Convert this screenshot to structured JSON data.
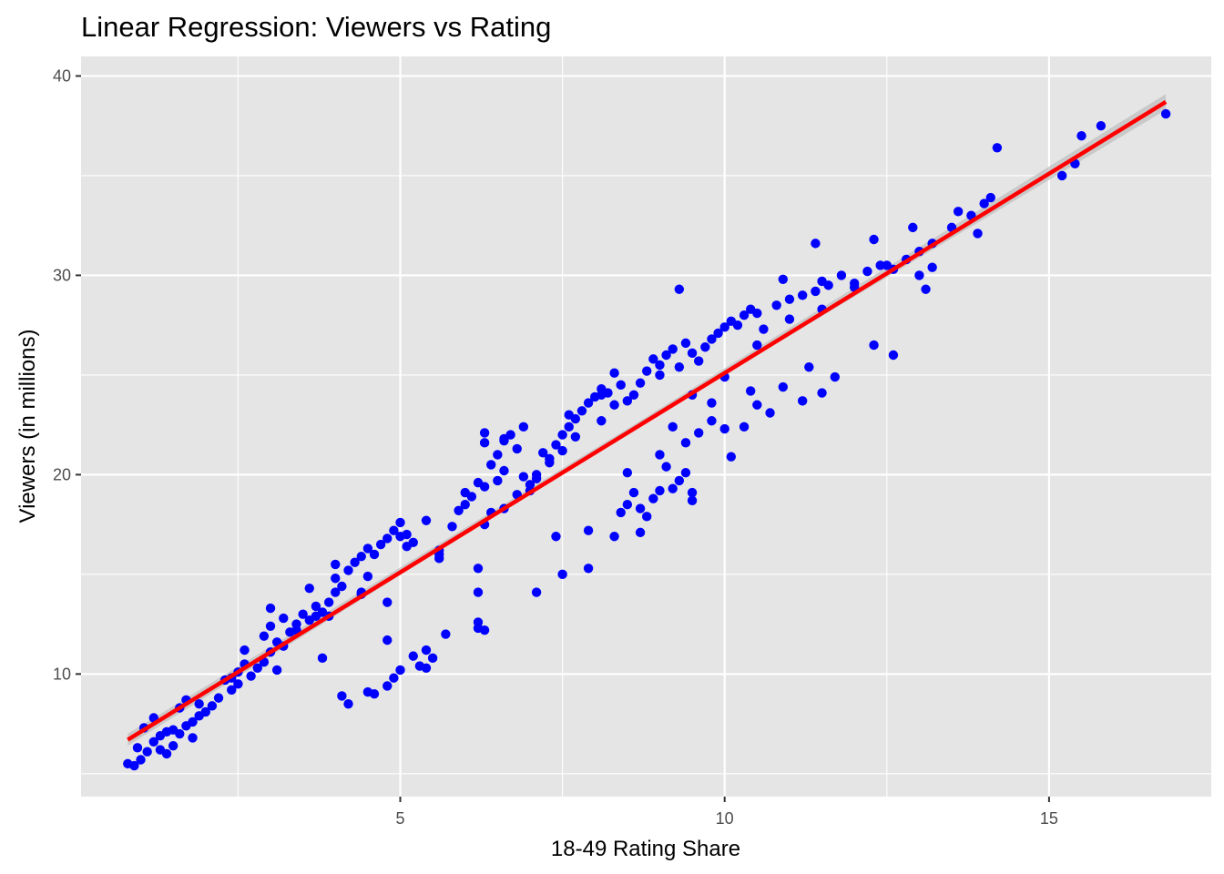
{
  "chart_data": {
    "type": "scatter",
    "title": "Linear Regression: Viewers vs Rating",
    "xlabel": "18-49 Rating Share",
    "ylabel": "Viewers (in millions)",
    "xlim": [
      0.08,
      17.5
    ],
    "ylim": [
      3.85,
      40.98
    ],
    "x_ticks": [
      5,
      10,
      15
    ],
    "y_ticks": [
      10,
      20,
      30,
      40
    ],
    "x_tick_labels": [
      "5",
      "10",
      "15"
    ],
    "y_tick_labels": [
      "10",
      "20",
      "30",
      "40"
    ],
    "grid": true,
    "legend": "none",
    "colors": {
      "panel": "#e5e5e5",
      "grid": "#ffffff",
      "points": "#0000ff",
      "fit_line": "#ff0000",
      "confidence_band": "#bfbfbf"
    },
    "fit_line": {
      "x": [
        0.8,
        16.8
      ],
      "y": [
        6.7,
        38.7
      ]
    },
    "confidence_band": {
      "x": [
        0.8,
        8.5,
        16.8
      ],
      "lower": [
        6.4,
        22.1,
        38.3
      ],
      "upper": [
        7.0,
        22.3,
        39.1
      ]
    },
    "points": [
      [
        0.8,
        5.5
      ],
      [
        0.9,
        5.4
      ],
      [
        1.0,
        5.7
      ],
      [
        0.95,
        6.3
      ],
      [
        1.1,
        6.1
      ],
      [
        1.2,
        6.6
      ],
      [
        1.3,
        6.2
      ],
      [
        1.4,
        6.0
      ],
      [
        1.3,
        6.9
      ],
      [
        1.5,
        7.2
      ],
      [
        1.6,
        7.0
      ],
      [
        1.7,
        7.4
      ],
      [
        1.8,
        7.6
      ],
      [
        1.6,
        8.3
      ],
      [
        1.7,
        8.7
      ],
      [
        1.9,
        8.5
      ],
      [
        2.0,
        8.1
      ],
      [
        1.8,
        6.8
      ],
      [
        1.2,
        7.8
      ],
      [
        1.05,
        7.3
      ],
      [
        1.4,
        7.1
      ],
      [
        1.5,
        6.4
      ],
      [
        1.9,
        7.9
      ],
      [
        2.1,
        8.4
      ],
      [
        2.2,
        8.8
      ],
      [
        2.4,
        9.2
      ],
      [
        2.3,
        9.7
      ],
      [
        2.5,
        10.1
      ],
      [
        2.6,
        10.5
      ],
      [
        2.5,
        9.5
      ],
      [
        2.7,
        9.9
      ],
      [
        2.8,
        10.3
      ],
      [
        2.9,
        10.6
      ],
      [
        3.0,
        11.1
      ],
      [
        3.1,
        11.6
      ],
      [
        3.2,
        11.4
      ],
      [
        2.9,
        11.9
      ],
      [
        3.3,
        12.1
      ],
      [
        3.4,
        12.5
      ],
      [
        3.5,
        13.0
      ],
      [
        3.6,
        12.7
      ],
      [
        3.7,
        13.4
      ],
      [
        3.8,
        13.1
      ],
      [
        3.9,
        13.6
      ],
      [
        3.0,
        12.4
      ],
      [
        3.0,
        13.3
      ],
      [
        3.2,
        12.8
      ],
      [
        3.1,
        10.2
      ],
      [
        2.6,
        11.2
      ],
      [
        3.6,
        14.3
      ],
      [
        4.0,
        14.1
      ],
      [
        4.1,
        14.4
      ],
      [
        4.2,
        15.2
      ],
      [
        4.3,
        15.6
      ],
      [
        4.4,
        15.9
      ],
      [
        4.5,
        16.3
      ],
      [
        4.6,
        16.0
      ],
      [
        4.7,
        16.5
      ],
      [
        4.8,
        16.8
      ],
      [
        4.9,
        17.2
      ],
      [
        5.0,
        17.6
      ],
      [
        5.1,
        17.0
      ],
      [
        5.2,
        16.6
      ],
      [
        4.0,
        15.5
      ],
      [
        4.0,
        14.8
      ],
      [
        4.4,
        14.0
      ],
      [
        4.8,
        13.6
      ],
      [
        3.8,
        10.8
      ],
      [
        4.1,
        8.9
      ],
      [
        4.2,
        8.5
      ],
      [
        4.5,
        9.1
      ],
      [
        4.6,
        9.0
      ],
      [
        4.8,
        9.4
      ],
      [
        4.9,
        9.8
      ],
      [
        5.0,
        10.2
      ],
      [
        5.2,
        10.9
      ],
      [
        5.4,
        11.2
      ],
      [
        5.3,
        10.4
      ],
      [
        5.4,
        10.3
      ],
      [
        5.5,
        10.8
      ],
      [
        4.8,
        11.7
      ],
      [
        5.7,
        12.0
      ],
      [
        5.6,
        15.8
      ],
      [
        5.6,
        16.2
      ],
      [
        5.8,
        17.4
      ],
      [
        5.9,
        18.2
      ],
      [
        6.0,
        18.5
      ],
      [
        6.1,
        18.9
      ],
      [
        6.3,
        19.4
      ],
      [
        6.2,
        19.6
      ],
      [
        6.4,
        20.5
      ],
      [
        6.5,
        21.0
      ],
      [
        6.6,
        21.7
      ],
      [
        6.7,
        22.0
      ],
      [
        6.8,
        21.3
      ],
      [
        6.9,
        22.4
      ],
      [
        6.3,
        22.1
      ],
      [
        6.3,
        21.6
      ],
      [
        6.0,
        19.1
      ],
      [
        6.4,
        18.1
      ],
      [
        6.6,
        18.3
      ],
      [
        6.8,
        19.0
      ],
      [
        7.0,
        19.5
      ],
      [
        7.1,
        20.0
      ],
      [
        7.3,
        20.8
      ],
      [
        7.2,
        21.1
      ],
      [
        7.4,
        21.5
      ],
      [
        7.5,
        22.0
      ],
      [
        7.6,
        22.4
      ],
      [
        7.7,
        22.8
      ],
      [
        7.8,
        23.2
      ],
      [
        7.9,
        23.6
      ],
      [
        8.0,
        23.9
      ],
      [
        8.1,
        24.3
      ],
      [
        8.2,
        24.1
      ],
      [
        8.3,
        25.1
      ],
      [
        8.4,
        24.5
      ],
      [
        8.5,
        23.7
      ],
      [
        8.6,
        24.0
      ],
      [
        8.7,
        24.6
      ],
      [
        8.8,
        25.2
      ],
      [
        8.9,
        25.8
      ],
      [
        9.0,
        25.5
      ],
      [
        9.1,
        26.0
      ],
      [
        9.2,
        26.3
      ],
      [
        9.3,
        25.4
      ],
      [
        9.4,
        26.6
      ],
      [
        9.5,
        26.1
      ],
      [
        9.6,
        25.7
      ],
      [
        9.7,
        26.4
      ],
      [
        9.8,
        26.8
      ],
      [
        9.9,
        27.1
      ],
      [
        10.0,
        27.4
      ],
      [
        10.1,
        27.7
      ],
      [
        10.2,
        27.5
      ],
      [
        10.3,
        28.0
      ],
      [
        10.4,
        28.3
      ],
      [
        10.5,
        28.1
      ],
      [
        10.6,
        27.3
      ],
      [
        10.8,
        28.5
      ],
      [
        11.0,
        28.8
      ],
      [
        11.2,
        29.0
      ],
      [
        11.4,
        29.2
      ],
      [
        11.5,
        29.7
      ],
      [
        11.6,
        29.5
      ],
      [
        11.8,
        30.0
      ],
      [
        12.0,
        29.4
      ],
      [
        12.2,
        30.2
      ],
      [
        12.4,
        30.5
      ],
      [
        12.6,
        30.3
      ],
      [
        12.8,
        30.8
      ],
      [
        13.0,
        31.2
      ],
      [
        13.2,
        31.6
      ],
      [
        13.5,
        32.4
      ],
      [
        13.6,
        33.2
      ],
      [
        13.8,
        33.0
      ],
      [
        14.0,
        33.6
      ],
      [
        14.2,
        36.4
      ],
      [
        13.9,
        32.1
      ],
      [
        13.1,
        29.3
      ],
      [
        13.0,
        30.0
      ],
      [
        12.9,
        32.4
      ],
      [
        12.3,
        31.8
      ],
      [
        12.3,
        26.5
      ],
      [
        12.6,
        26.0
      ],
      [
        11.4,
        31.6
      ],
      [
        11.5,
        24.1
      ],
      [
        11.7,
        24.9
      ],
      [
        11.3,
        25.4
      ],
      [
        11.2,
        23.7
      ],
      [
        10.9,
        29.8
      ],
      [
        9.3,
        29.3
      ],
      [
        10.4,
        24.2
      ],
      [
        10.3,
        22.4
      ],
      [
        10.1,
        20.9
      ],
      [
        10.0,
        22.3
      ],
      [
        9.8,
        23.6
      ],
      [
        9.6,
        22.1
      ],
      [
        9.4,
        20.1
      ],
      [
        9.3,
        19.7
      ],
      [
        9.1,
        20.4
      ],
      [
        9.0,
        19.2
      ],
      [
        8.9,
        18.8
      ],
      [
        8.8,
        17.9
      ],
      [
        8.7,
        18.3
      ],
      [
        8.6,
        19.1
      ],
      [
        8.5,
        20.1
      ],
      [
        8.4,
        18.1
      ],
      [
        8.7,
        17.1
      ],
      [
        9.2,
        19.3
      ],
      [
        9.5,
        19.1
      ],
      [
        9.0,
        21.0
      ],
      [
        9.2,
        22.4
      ],
      [
        9.4,
        21.6
      ],
      [
        9.8,
        22.7
      ],
      [
        10.5,
        23.5
      ],
      [
        10.7,
        23.1
      ],
      [
        10.9,
        24.4
      ],
      [
        10.0,
        24.9
      ],
      [
        9.5,
        24.0
      ],
      [
        8.3,
        23.5
      ],
      [
        8.1,
        22.7
      ],
      [
        7.7,
        21.9
      ],
      [
        7.5,
        21.2
      ],
      [
        7.3,
        20.6
      ],
      [
        7.1,
        19.8
      ],
      [
        7.0,
        19.2
      ],
      [
        6.9,
        19.9
      ],
      [
        6.6,
        20.2
      ],
      [
        6.5,
        19.7
      ],
      [
        6.3,
        17.5
      ],
      [
        6.2,
        15.3
      ],
      [
        6.2,
        14.1
      ],
      [
        6.3,
        12.2
      ],
      [
        6.2,
        12.6
      ],
      [
        6.2,
        12.3
      ],
      [
        7.1,
        14.1
      ],
      [
        7.5,
        15.0
      ],
      [
        7.4,
        16.9
      ],
      [
        7.9,
        15.3
      ],
      [
        7.9,
        17.2
      ],
      [
        8.3,
        16.9
      ],
      [
        8.5,
        18.5
      ],
      [
        9.5,
        18.7
      ],
      [
        5.1,
        16.4
      ],
      [
        5.6,
        16.0
      ],
      [
        5.0,
        16.9
      ],
      [
        4.5,
        14.9
      ],
      [
        3.4,
        12.2
      ],
      [
        3.9,
        12.9
      ],
      [
        2.4,
        9.8
      ],
      [
        3.7,
        12.9
      ],
      [
        4.4,
        14.1
      ],
      [
        5.4,
        17.7
      ],
      [
        6.6,
        21.8
      ],
      [
        7.6,
        23.0
      ],
      [
        8.1,
        24.0
      ],
      [
        9.0,
        25.0
      ],
      [
        10.5,
        26.5
      ],
      [
        11.0,
        27.8
      ],
      [
        11.5,
        28.3
      ],
      [
        12.0,
        29.6
      ],
      [
        12.5,
        30.5
      ],
      [
        13.2,
        30.4
      ],
      [
        14.1,
        33.9
      ],
      [
        15.2,
        35.0
      ],
      [
        15.4,
        35.6
      ],
      [
        15.5,
        37.0
      ],
      [
        15.8,
        37.5
      ],
      [
        16.8,
        38.1
      ]
    ]
  }
}
